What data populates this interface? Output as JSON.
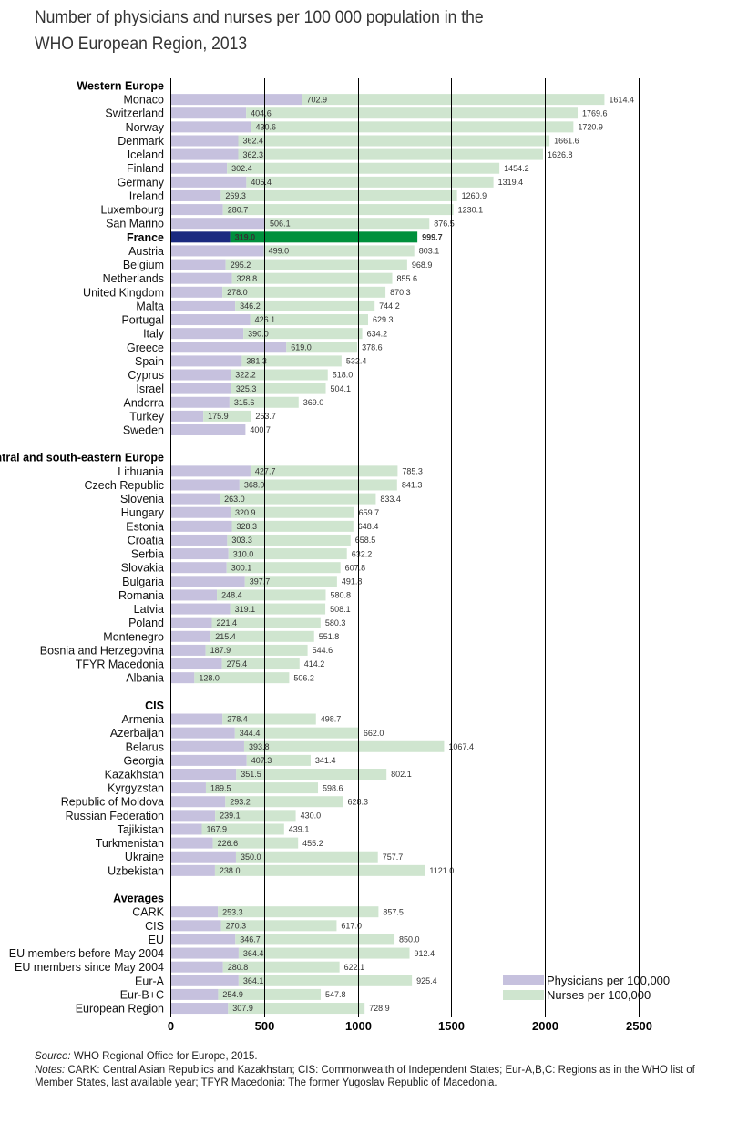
{
  "title": [
    "Number of physicians and nurses per 100 000 population in the",
    "WHO European Region, 2013"
  ],
  "chart_data": {
    "type": "bar",
    "orientation": "horizontal",
    "stacked": true,
    "xlim": [
      0,
      2500
    ],
    "xticks": [
      0,
      500,
      1000,
      1500,
      2000,
      2500
    ],
    "grid": "vertical lines at ticks",
    "legend_position": "bottom-right",
    "series": [
      {
        "key": "physicians",
        "name": "Physicians per 100,000",
        "color": "#c6c1de"
      },
      {
        "key": "nurses",
        "name": "Nurses per 100,000",
        "color": "#cfe5cf"
      }
    ],
    "highlight": {
      "label": "France",
      "physicians_color": "#1b2a80",
      "nurses_color": "#00903c"
    },
    "groups": [
      {
        "name": "Western Europe",
        "rows": [
          {
            "label": "Monaco",
            "physicians": 702.9,
            "nurses": 1614.4
          },
          {
            "label": "Switzerland",
            "physicians": 404.6,
            "nurses": 1769.6
          },
          {
            "label": "Norway",
            "physicians": 430.6,
            "nurses": 1720.9
          },
          {
            "label": "Denmark",
            "physicians": 362.4,
            "nurses": 1661.6
          },
          {
            "label": "Iceland",
            "physicians": 362.3,
            "nurses": 1626.8
          },
          {
            "label": "Finland",
            "physicians": 302.4,
            "nurses": 1454.2
          },
          {
            "label": "Germany",
            "physicians": 405.4,
            "nurses": 1319.4
          },
          {
            "label": "Ireland",
            "physicians": 269.3,
            "nurses": 1260.9
          },
          {
            "label": "Luxembourg",
            "physicians": 280.7,
            "nurses": 1230.1
          },
          {
            "label": "San Marino",
            "physicians": 506.1,
            "nurses": 876.5
          },
          {
            "label": "France",
            "physicians": 319.0,
            "nurses": 999.7
          },
          {
            "label": "Austria",
            "physicians": 499.0,
            "nurses": 803.1
          },
          {
            "label": "Belgium",
            "physicians": 295.2,
            "nurses": 968.9
          },
          {
            "label": "Netherlands",
            "physicians": 328.8,
            "nurses": 855.6
          },
          {
            "label": "United Kingdom",
            "physicians": 278.0,
            "nurses": 870.3
          },
          {
            "label": "Malta",
            "physicians": 346.2,
            "nurses": 744.2
          },
          {
            "label": "Portugal",
            "physicians": 426.1,
            "nurses": 629.3
          },
          {
            "label": "Italy",
            "physicians": 390.0,
            "nurses": 634.2
          },
          {
            "label": "Greece",
            "physicians": 619.0,
            "nurses": 378.6
          },
          {
            "label": "Spain",
            "physicians": 381.3,
            "nurses": 532.4
          },
          {
            "label": "Cyprus",
            "physicians": 322.2,
            "nurses": 518.0
          },
          {
            "label": "Israel",
            "physicians": 325.3,
            "nurses": 504.1
          },
          {
            "label": "Andorra",
            "physicians": 315.6,
            "nurses": 369.0
          },
          {
            "label": "Turkey",
            "physicians": 175.9,
            "nurses": 253.7
          },
          {
            "label": "Sweden",
            "physicians": 400.7,
            "nurses": null
          }
        ]
      },
      {
        "name": "Central and south-eastern Europe",
        "rows": [
          {
            "label": "Lithuania",
            "physicians": 427.7,
            "nurses": 785.3
          },
          {
            "label": "Czech Republic",
            "physicians": 368.9,
            "nurses": 841.3
          },
          {
            "label": "Slovenia",
            "physicians": 263.0,
            "nurses": 833.4
          },
          {
            "label": "Hungary",
            "physicians": 320.9,
            "nurses": 659.7
          },
          {
            "label": "Estonia",
            "physicians": 328.3,
            "nurses": 648.4
          },
          {
            "label": "Croatia",
            "physicians": 303.3,
            "nurses": 658.5
          },
          {
            "label": "Serbia",
            "physicians": 310.0,
            "nurses": 632.2
          },
          {
            "label": "Slovakia",
            "physicians": 300.1,
            "nurses": 607.8
          },
          {
            "label": "Bulgaria",
            "physicians": 397.7,
            "nurses": 491.8
          },
          {
            "label": "Romania",
            "physicians": 248.4,
            "nurses": 580.8
          },
          {
            "label": "Latvia",
            "physicians": 319.1,
            "nurses": 508.1
          },
          {
            "label": "Poland",
            "physicians": 221.4,
            "nurses": 580.3
          },
          {
            "label": "Montenegro",
            "physicians": 215.4,
            "nurses": 551.8
          },
          {
            "label": "Bosnia and Herzegovina",
            "physicians": 187.9,
            "nurses": 544.6
          },
          {
            "label": "TFYR Macedonia",
            "physicians": 275.4,
            "nurses": 414.2
          },
          {
            "label": "Albania",
            "physicians": 128.0,
            "nurses": 506.2
          }
        ]
      },
      {
        "name": "CIS",
        "rows": [
          {
            "label": "Armenia",
            "physicians": 278.4,
            "nurses": 498.7
          },
          {
            "label": "Azerbaijan",
            "physicians": 344.4,
            "nurses": 662.0
          },
          {
            "label": "Belarus",
            "physicians": 393.8,
            "nurses": 1067.4
          },
          {
            "label": "Georgia",
            "physicians": 407.3,
            "nurses": 341.4
          },
          {
            "label": "Kazakhstan",
            "physicians": 351.5,
            "nurses": 802.1
          },
          {
            "label": "Kyrgyzstan",
            "physicians": 189.5,
            "nurses": 598.6
          },
          {
            "label": "Republic of Moldova",
            "physicians": 293.2,
            "nurses": 628.3
          },
          {
            "label": "Russian Federation",
            "physicians": 239.1,
            "nurses": 430.0
          },
          {
            "label": "Tajikistan",
            "physicians": 167.9,
            "nurses": 439.1
          },
          {
            "label": "Turkmenistan",
            "physicians": 226.6,
            "nurses": 455.2
          },
          {
            "label": "Ukraine",
            "physicians": 350.0,
            "nurses": 757.7
          },
          {
            "label": "Uzbekistan",
            "physicians": 238.0,
            "nurses": 1121.0
          }
        ]
      },
      {
        "name": "Averages",
        "rows": [
          {
            "label": "CARK",
            "physicians": 253.3,
            "nurses": 857.5
          },
          {
            "label": "CIS",
            "physicians": 270.3,
            "nurses": 617.0
          },
          {
            "label": "EU",
            "physicians": 346.7,
            "nurses": 850.0
          },
          {
            "label": "EU members before May 2004",
            "physicians": 364.4,
            "nurses": 912.4
          },
          {
            "label": "EU members since May 2004",
            "physicians": 280.8,
            "nurses": 622.1
          },
          {
            "label": "Eur-A",
            "physicians": 364.1,
            "nurses": 925.4
          },
          {
            "label": "Eur-B+C",
            "physicians": 254.9,
            "nurses": 547.8
          },
          {
            "label": "European Region",
            "physicians": 307.9,
            "nurses": 728.9
          }
        ]
      }
    ]
  },
  "footer": {
    "source_label": "Source:",
    "source_text": " WHO Regional Office for Europe, 2015.",
    "notes_label": "Notes:",
    "notes_text": " CARK: Central Asian Republics and Kazakhstan; CIS: Commonwealth of Independent States; Eur-A,B,C: Regions as in the WHO list of Member States, last available year; TFYR Macedonia: The former Yugoslav Republic of Macedonia."
  }
}
